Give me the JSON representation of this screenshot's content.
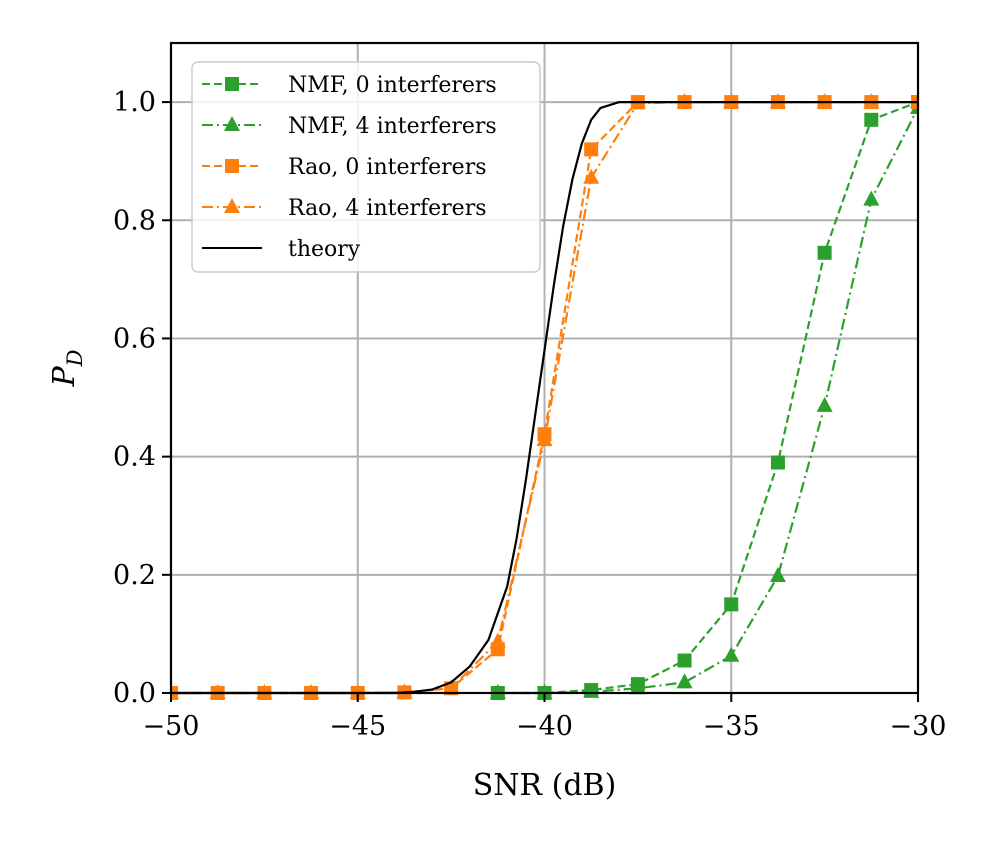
{
  "chart_data": {
    "type": "line",
    "title": "",
    "xlabel": "SNR (dB)",
    "ylabel": "P",
    "ylabel_subscript": "D",
    "xlim": [
      -50,
      -30
    ],
    "ylim": [
      0,
      1.1
    ],
    "grid": true,
    "legend_position": "top-left",
    "x_ticks": [
      -50,
      -45,
      -40,
      -35,
      -30
    ],
    "x_tick_labels": [
      "−50",
      "−45",
      "−40",
      "−35",
      "−30"
    ],
    "y_ticks": [
      0.0,
      0.2,
      0.4,
      0.6,
      0.8,
      1.0
    ],
    "y_tick_labels": [
      "0.0",
      "0.2",
      "0.4",
      "0.6",
      "0.8",
      "1.0"
    ],
    "series": [
      {
        "name": "NMF, 0 interferers",
        "color": "#2ca02c",
        "linestyle": "dashed",
        "marker": "square",
        "x": [
          -41.25,
          -40,
          -38.75,
          -37.5,
          -36.25,
          -35,
          -33.75,
          -32.5,
          -31.25,
          -30
        ],
        "y": [
          0.0,
          0.0,
          0.005,
          0.015,
          0.055,
          0.15,
          0.39,
          0.745,
          0.97,
          1.0
        ]
      },
      {
        "name": "NMF, 4 interferers",
        "color": "#2ca02c",
        "linestyle": "dashdot",
        "marker": "triangle",
        "x": [
          -41.25,
          -40,
          -38.75,
          -37.5,
          -36.25,
          -35,
          -33.75,
          -32.5,
          -31.25,
          -30
        ],
        "y": [
          0.0,
          0.0,
          0.002,
          0.008,
          0.018,
          0.063,
          0.198,
          0.486,
          0.835,
          0.99
        ]
      },
      {
        "name": "Rao, 0 interferers",
        "color": "#ff7f0e",
        "linestyle": "dashed",
        "marker": "square",
        "x": [
          -50,
          -48.75,
          -47.5,
          -46.25,
          -45,
          -43.75,
          -42.5,
          -41.25,
          -40,
          -38.75,
          -37.5,
          -36.25,
          -35,
          -33.75,
          -32.5,
          -31.25,
          -30
        ],
        "y": [
          0.0,
          0.0,
          0.0,
          0.0,
          0.0,
          0.001,
          0.008,
          0.074,
          0.438,
          0.92,
          1.0,
          1.0,
          1.0,
          1.0,
          1.0,
          1.0,
          1.0
        ]
      },
      {
        "name": "Rao, 4 interferers",
        "color": "#ff7f0e",
        "linestyle": "dashdot",
        "marker": "triangle",
        "x": [
          -50,
          -48.75,
          -47.5,
          -46.25,
          -45,
          -43.75,
          -42.5,
          -41.25,
          -40,
          -38.75,
          -37.5,
          -36.25,
          -35,
          -33.75,
          -32.5,
          -31.25,
          -30
        ],
        "y": [
          0.0,
          0.0,
          0.0,
          0.0,
          0.0,
          0.001,
          0.008,
          0.087,
          0.428,
          0.872,
          0.998,
          1.0,
          1.0,
          1.0,
          1.0,
          1.0,
          1.0
        ]
      },
      {
        "name": "theory",
        "color": "#000000",
        "linestyle": "solid",
        "marker": "none",
        "x": [
          -50,
          -44,
          -43.5,
          -43,
          -42.5,
          -42,
          -41.5,
          -41,
          -40.75,
          -40.5,
          -40.25,
          -40,
          -39.75,
          -39.5,
          -39.25,
          -39,
          -38.75,
          -38.5,
          -38,
          -37.5,
          -30
        ],
        "y": [
          0.0,
          0.0,
          0.002,
          0.006,
          0.018,
          0.045,
          0.09,
          0.18,
          0.26,
          0.36,
          0.47,
          0.58,
          0.69,
          0.79,
          0.87,
          0.93,
          0.97,
          0.99,
          1.0,
          1.0,
          1.0
        ]
      }
    ]
  }
}
